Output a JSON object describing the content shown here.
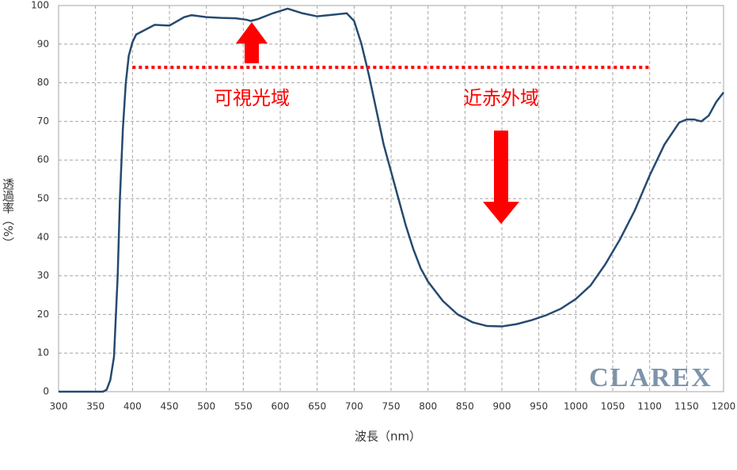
{
  "chart_data": {
    "type": "line",
    "x_label": "波長（nm）",
    "y_label": "透過率（%）",
    "x": [
      300,
      360,
      365,
      370,
      375,
      380,
      383,
      387,
      391,
      395,
      400,
      405,
      415,
      430,
      450,
      470,
      480,
      500,
      520,
      540,
      555,
      560,
      570,
      590,
      610,
      630,
      650,
      670,
      690,
      700,
      710,
      720,
      730,
      740,
      750,
      760,
      770,
      780,
      790,
      800,
      820,
      840,
      860,
      880,
      900,
      920,
      940,
      960,
      980,
      1000,
      1020,
      1040,
      1060,
      1080,
      1100,
      1120,
      1140,
      1150,
      1160,
      1170,
      1180,
      1190,
      1200
    ],
    "values": [
      0,
      0,
      0.5,
      3,
      9,
      30,
      50,
      68,
      80,
      87,
      90.5,
      92.5,
      93.5,
      95,
      94.8,
      97,
      97.5,
      97,
      96.8,
      96.7,
      96.3,
      96,
      96.5,
      98,
      99.2,
      98,
      97.2,
      97.6,
      98,
      96,
      90,
      82,
      73,
      64,
      57,
      50,
      43,
      37,
      32,
      28.5,
      23.5,
      20,
      18,
      17,
      16.9,
      17.5,
      18.5,
      19.8,
      21.5,
      24,
      27.5,
      33,
      39.5,
      47,
      56,
      64,
      69.7,
      70.5,
      70.5,
      70,
      71.5,
      75,
      77.5
    ],
    "color": "#264a70",
    "xlim": [
      300,
      1200
    ],
    "ylim": [
      0,
      100
    ],
    "xticks": [
      300,
      350,
      400,
      450,
      500,
      550,
      600,
      650,
      700,
      750,
      800,
      850,
      900,
      950,
      1000,
      1050,
      1100,
      1150,
      1200
    ],
    "yticks": [
      0,
      10,
      20,
      30,
      40,
      50,
      60,
      70,
      80,
      90,
      100
    ],
    "grid": true,
    "reference_line": {
      "y": 84,
      "x": [
        400,
        1100
      ],
      "color": "#ff0000"
    },
    "annotations": [
      "可視光域",
      "近赤外域"
    ],
    "watermark": "CLAREX"
  }
}
